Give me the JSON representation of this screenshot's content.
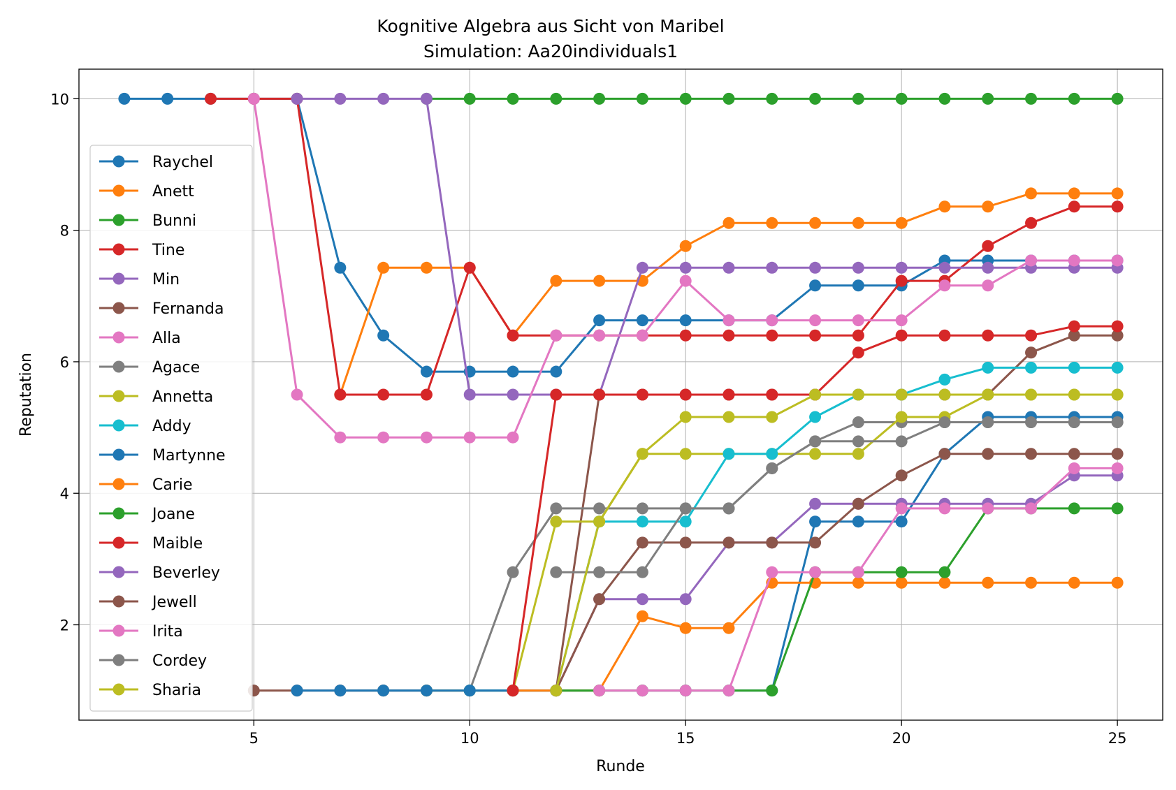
{
  "chart_data": {
    "type": "line",
    "title": "Kognitive Algebra aus Sicht von Maribel",
    "subtitle": "Simulation: Aa20individuals1",
    "xlabel": "Runde",
    "ylabel": "Reputation",
    "xlim": [
      0.95,
      26.05
    ],
    "ylim": [
      0.55,
      10.45
    ],
    "xticks": [
      5,
      10,
      15,
      20,
      25
    ],
    "yticks": [
      2,
      4,
      6,
      8,
      10
    ],
    "grid": true,
    "legend_position": "left",
    "series": [
      {
        "name": "Raychel",
        "color": "#1f77b4",
        "x": [
          2,
          3,
          4,
          5,
          6,
          7,
          8,
          9,
          10,
          11,
          12,
          13,
          14,
          15,
          16,
          17,
          18,
          19,
          20,
          21,
          22,
          23,
          24,
          25
        ],
        "y": [
          10,
          10,
          10,
          10,
          10,
          7.43,
          6.4,
          5.85,
          5.85,
          5.85,
          5.85,
          6.63,
          6.63,
          6.63,
          6.63,
          6.63,
          7.16,
          7.16,
          7.16,
          7.54,
          7.54,
          7.54,
          7.54,
          7.54
        ]
      },
      {
        "name": "Anett",
        "color": "#ff7f0e",
        "x": [
          7,
          8,
          9,
          10,
          11,
          12,
          13,
          14,
          15,
          16,
          17,
          18,
          19,
          20,
          21,
          22,
          23,
          24,
          25
        ],
        "y": [
          5.5,
          7.43,
          7.43,
          7.43,
          6.4,
          7.23,
          7.23,
          7.23,
          7.76,
          8.11,
          8.11,
          8.11,
          8.11,
          8.11,
          8.36,
          8.36,
          8.56,
          8.56,
          8.56
        ]
      },
      {
        "name": "Bunni",
        "color": "#2ca02c",
        "x": [
          9,
          10,
          11,
          12,
          13,
          14,
          15,
          16,
          17,
          18,
          19,
          20,
          21,
          22,
          23,
          24,
          25
        ],
        "y": [
          10,
          10,
          10,
          10,
          10,
          10,
          10,
          10,
          10,
          10,
          10,
          10,
          10,
          10,
          10,
          10,
          10
        ]
      },
      {
        "name": "Tine",
        "color": "#d62728",
        "x": [
          4,
          5,
          6,
          7,
          8,
          9,
          10,
          11,
          12,
          13,
          14,
          15,
          16,
          17,
          18,
          19,
          20,
          21,
          22,
          23,
          24,
          25
        ],
        "y": [
          10,
          10,
          10,
          5.5,
          5.5,
          5.5,
          7.43,
          6.4,
          6.4,
          6.4,
          6.4,
          6.4,
          6.4,
          6.4,
          6.4,
          6.4,
          7.23,
          7.23,
          7.76,
          8.11,
          8.36,
          8.36
        ]
      },
      {
        "name": "Min",
        "color": "#9467bd",
        "x": [
          6,
          7,
          8,
          9,
          10,
          11,
          12,
          13,
          14,
          15,
          16,
          17,
          18,
          19,
          20,
          21,
          22,
          23,
          24,
          25
        ],
        "y": [
          10,
          10,
          10,
          10,
          5.5,
          5.5,
          5.5,
          5.5,
          7.43,
          7.43,
          7.43,
          7.43,
          7.43,
          7.43,
          7.43,
          7.43,
          7.43,
          7.43,
          7.43,
          7.43
        ]
      },
      {
        "name": "Fernanda",
        "color": "#8c564b",
        "x": [
          5,
          6,
          7,
          8,
          9,
          10,
          11,
          12,
          13,
          14,
          15,
          16,
          17,
          18,
          19,
          20,
          21,
          22,
          23,
          24,
          25
        ],
        "y": [
          1,
          1,
          1,
          1,
          1,
          1,
          1,
          1,
          5.5,
          5.5,
          5.5,
          5.5,
          5.5,
          5.5,
          5.5,
          5.5,
          5.5,
          5.5,
          6.14,
          6.4,
          6.4
        ]
      },
      {
        "name": "Alla",
        "color": "#e377c2",
        "x": [
          5,
          6,
          7,
          8,
          9,
          10,
          11,
          12,
          13,
          14,
          15,
          16,
          17,
          18,
          19,
          20,
          21,
          22,
          23,
          24,
          25
        ],
        "y": [
          10,
          5.5,
          4.85,
          4.85,
          4.85,
          4.85,
          4.85,
          6.4,
          6.4,
          6.4,
          7.23,
          6.63,
          6.63,
          6.63,
          6.63,
          6.63,
          7.16,
          7.16,
          7.54,
          7.54,
          7.54
        ]
      },
      {
        "name": "Agace",
        "color": "#7f7f7f",
        "x": [
          7,
          8,
          9,
          10,
          11,
          12,
          13,
          14,
          15,
          16,
          17,
          18,
          19,
          20,
          21,
          22,
          23,
          24,
          25
        ],
        "y": [
          1,
          1,
          1,
          1,
          2.8,
          3.77,
          3.77,
          3.77,
          3.77,
          3.77,
          4.38,
          4.79,
          5.08,
          5.08,
          5.08,
          5.08,
          5.08,
          5.08,
          5.08
        ]
      },
      {
        "name": "Annetta",
        "color": "#bcbd22",
        "x": [
          9,
          10,
          11,
          12,
          13,
          14,
          15,
          16,
          17,
          18,
          19,
          20,
          21,
          22,
          23,
          24,
          25
        ],
        "y": [
          1,
          1,
          1,
          3.57,
          3.57,
          4.6,
          4.6,
          4.6,
          4.6,
          4.6,
          4.6,
          5.16,
          5.16,
          5.5,
          5.5,
          5.5,
          5.5
        ]
      },
      {
        "name": "Addy",
        "color": "#17becf",
        "x": [
          10,
          11,
          12,
          13,
          14,
          15,
          16,
          17,
          18,
          19,
          20,
          21,
          22,
          23,
          24,
          25
        ],
        "y": [
          1,
          1,
          1,
          3.57,
          3.57,
          3.57,
          4.6,
          4.6,
          5.16,
          5.5,
          5.5,
          5.73,
          5.91,
          5.91,
          5.91,
          5.91
        ]
      },
      {
        "name": "Martynne",
        "color": "#1f77b4",
        "x": [
          6,
          7,
          8,
          9,
          10,
          11,
          12,
          13,
          14,
          15,
          16,
          17,
          18,
          19,
          20,
          21,
          22,
          23,
          24,
          25
        ],
        "y": [
          1,
          1,
          1,
          1,
          1,
          1,
          1,
          1,
          1,
          1,
          1,
          1,
          3.57,
          3.57,
          3.57,
          4.6,
          5.16,
          5.16,
          5.16,
          5.16
        ]
      },
      {
        "name": "Carie",
        "color": "#ff7f0e",
        "x": [
          11,
          12,
          13,
          14,
          15,
          16,
          17,
          18,
          19,
          20,
          21,
          22,
          23,
          24,
          25
        ],
        "y": [
          1,
          1,
          1,
          2.13,
          1.95,
          1.95,
          2.64,
          2.64,
          2.64,
          2.64,
          2.64,
          2.64,
          2.64,
          2.64,
          2.64
        ]
      },
      {
        "name": "Joane",
        "color": "#2ca02c",
        "x": [
          12,
          13,
          14,
          15,
          16,
          17,
          18,
          19,
          20,
          21,
          22,
          23,
          24,
          25
        ],
        "y": [
          1,
          1,
          1,
          1,
          1,
          1,
          2.8,
          2.8,
          2.8,
          2.8,
          3.77,
          3.77,
          3.77,
          3.77
        ]
      },
      {
        "name": "Maible",
        "color": "#d62728",
        "x": [
          11,
          12,
          13,
          14,
          15,
          16,
          17,
          18,
          19,
          20,
          21,
          22,
          23,
          24,
          25
        ],
        "y": [
          1,
          5.5,
          5.5,
          5.5,
          5.5,
          5.5,
          5.5,
          5.5,
          6.14,
          6.4,
          6.4,
          6.4,
          6.4,
          6.54,
          6.54
        ]
      },
      {
        "name": "Beverley",
        "color": "#9467bd",
        "x": [
          12,
          13,
          14,
          15,
          16,
          17,
          18,
          19,
          20,
          21,
          22,
          23,
          24,
          25
        ],
        "y": [
          1,
          2.39,
          2.39,
          2.39,
          3.25,
          3.25,
          3.84,
          3.84,
          3.84,
          3.84,
          3.84,
          3.84,
          4.27,
          4.27
        ]
      },
      {
        "name": "Jewell",
        "color": "#8c564b",
        "x": [
          12,
          13,
          14,
          15,
          16,
          17,
          18,
          19,
          20,
          21,
          22,
          23,
          24,
          25
        ],
        "y": [
          1,
          2.39,
          3.25,
          3.25,
          3.25,
          3.25,
          3.25,
          3.84,
          4.27,
          4.6,
          4.6,
          4.6,
          4.6,
          4.6
        ]
      },
      {
        "name": "Irita",
        "color": "#e377c2",
        "x": [
          13,
          14,
          15,
          16,
          17,
          18,
          19,
          20,
          21,
          22,
          23,
          24,
          25
        ],
        "y": [
          1,
          1,
          1,
          1,
          2.8,
          2.8,
          2.8,
          3.77,
          3.77,
          3.77,
          3.77,
          4.38,
          4.38
        ]
      },
      {
        "name": "Cordey",
        "color": "#7f7f7f",
        "x": [
          12,
          13,
          14,
          15,
          16,
          17,
          18,
          19,
          20,
          21,
          22,
          23,
          24,
          25
        ],
        "y": [
          2.8,
          2.8,
          2.8,
          3.77,
          3.77,
          4.38,
          4.79,
          4.79,
          4.79,
          5.08,
          5.08,
          5.08,
          5.08,
          5.08
        ]
      },
      {
        "name": "Sharia",
        "color": "#bcbd22",
        "x": [
          12,
          13,
          14,
          15,
          16,
          17,
          18,
          19,
          20,
          21,
          22,
          23,
          24,
          25
        ],
        "y": [
          1,
          3.57,
          4.6,
          5.16,
          5.16,
          5.16,
          5.5,
          5.5,
          5.5,
          5.5,
          5.5,
          5.5,
          5.5,
          5.5
        ]
      }
    ]
  }
}
